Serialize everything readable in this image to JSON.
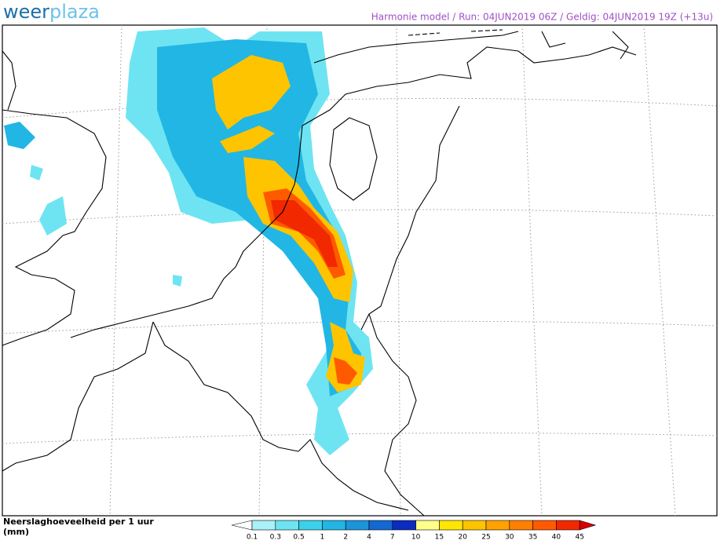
{
  "logo": {
    "part1": "weer",
    "part2": "plaza"
  },
  "header": "Harmonie model / Run: 04JUN2019 06Z / Geldig: 04JUN2019 19Z (+13u)",
  "legend": {
    "title_line1": "Neerslaghoeveelheid per 1 uur",
    "title_line2": "(mm)",
    "labels": [
      "0.1",
      "0.3",
      "0.5",
      "1",
      "2",
      "4",
      "7",
      "10",
      "15",
      "20",
      "25",
      "30",
      "35",
      "40",
      "45"
    ],
    "colors": [
      "#ffffff",
      "#a8f2f8",
      "#6ee4f2",
      "#3cd0ec",
      "#22b6e4",
      "#1c94da",
      "#1468d2",
      "#0a2cc0",
      "#ffff8a",
      "#ffe600",
      "#ffc400",
      "#ffa200",
      "#ff8000",
      "#ff5a00",
      "#f22800",
      "#d80000"
    ]
  }
}
